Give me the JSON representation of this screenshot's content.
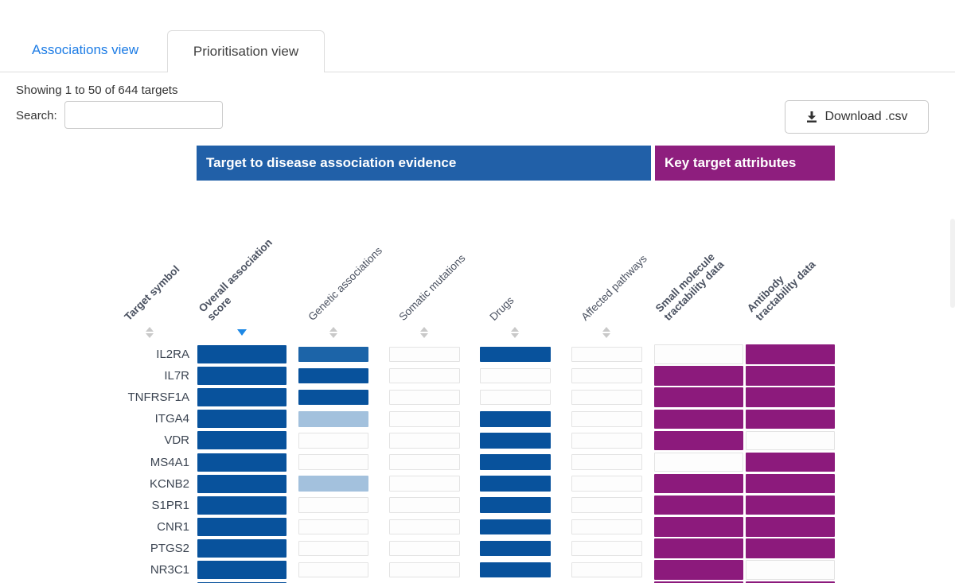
{
  "tabs": {
    "associations": {
      "label": "Associations view",
      "active": false
    },
    "prioritisation": {
      "label": "Prioritisation view",
      "active": true
    }
  },
  "summary_text": "Showing 1 to 50 of 644 targets",
  "search": {
    "label": "Search:",
    "value": "",
    "placeholder": ""
  },
  "download_button": {
    "label": "Download .csv",
    "icon": "download-icon"
  },
  "group_headers": {
    "association": {
      "label": "Target to disease association evidence",
      "color": "#2160a8"
    },
    "attributes": {
      "label": "Key target attributes",
      "color": "#8e1e7e"
    }
  },
  "columns": [
    {
      "id": "target_symbol",
      "label": "Target symbol",
      "bold": true,
      "sortable": true,
      "sort": "none"
    },
    {
      "id": "overall",
      "label": "Overall association\nscore",
      "bold": true,
      "sortable": true,
      "sort": "desc"
    },
    {
      "id": "genetic",
      "label": "Genetic associations",
      "bold": false,
      "sortable": true,
      "sort": "none"
    },
    {
      "id": "somatic",
      "label": "Somatic mutations",
      "bold": false,
      "sortable": true,
      "sort": "none"
    },
    {
      "id": "drugs",
      "label": "Drugs",
      "bold": false,
      "sortable": true,
      "sort": "none"
    },
    {
      "id": "pathways",
      "label": "Affected pathways",
      "bold": false,
      "sortable": true,
      "sort": "none"
    },
    {
      "id": "smallmol",
      "label": "Small molecule\ntractability data",
      "bold": true,
      "sortable": false,
      "sort": "none"
    },
    {
      "id": "antibody",
      "label": "Antibody\ntractability data",
      "bold": true,
      "sortable": false,
      "sort": "none"
    }
  ],
  "cell_colors": {
    "dark_blue": "#08529c",
    "medium_blue": "#1c64a8",
    "light_blue": "#a3c1dd",
    "purple": "#8c1a7c",
    "empty": "#ffffff"
  },
  "rows": [
    {
      "symbol": "IL2RA",
      "cells": [
        "dark_blue",
        "medium_blue",
        "empty",
        "dark_blue",
        "empty",
        "empty",
        "purple"
      ]
    },
    {
      "symbol": "IL7R",
      "cells": [
        "dark_blue",
        "dark_blue",
        "empty",
        "empty",
        "empty",
        "purple",
        "purple"
      ]
    },
    {
      "symbol": "TNFRSF1A",
      "cells": [
        "dark_blue",
        "dark_blue",
        "empty",
        "empty",
        "empty",
        "purple",
        "purple"
      ]
    },
    {
      "symbol": "ITGA4",
      "cells": [
        "dark_blue",
        "light_blue",
        "empty",
        "dark_blue",
        "empty",
        "purple",
        "purple"
      ]
    },
    {
      "symbol": "VDR",
      "cells": [
        "dark_blue",
        "empty",
        "empty",
        "dark_blue",
        "empty",
        "purple",
        "empty"
      ]
    },
    {
      "symbol": "MS4A1",
      "cells": [
        "dark_blue",
        "empty",
        "empty",
        "dark_blue",
        "empty",
        "empty",
        "purple"
      ]
    },
    {
      "symbol": "KCNB2",
      "cells": [
        "dark_blue",
        "light_blue",
        "empty",
        "dark_blue",
        "empty",
        "purple",
        "purple"
      ]
    },
    {
      "symbol": "S1PR1",
      "cells": [
        "dark_blue",
        "empty",
        "empty",
        "dark_blue",
        "empty",
        "purple",
        "purple"
      ]
    },
    {
      "symbol": "CNR1",
      "cells": [
        "dark_blue",
        "empty",
        "empty",
        "dark_blue",
        "empty",
        "purple",
        "purple"
      ]
    },
    {
      "symbol": "PTGS2",
      "cells": [
        "dark_blue",
        "empty",
        "empty",
        "dark_blue",
        "empty",
        "purple",
        "purple"
      ]
    },
    {
      "symbol": "NR3C1",
      "cells": [
        "dark_blue",
        "empty",
        "empty",
        "dark_blue",
        "empty",
        "purple",
        "empty"
      ]
    },
    {
      "symbol": "",
      "cells": [
        "dark_blue",
        "empty",
        "empty",
        "dark_blue",
        "empty",
        "purple",
        "purple"
      ]
    }
  ]
}
